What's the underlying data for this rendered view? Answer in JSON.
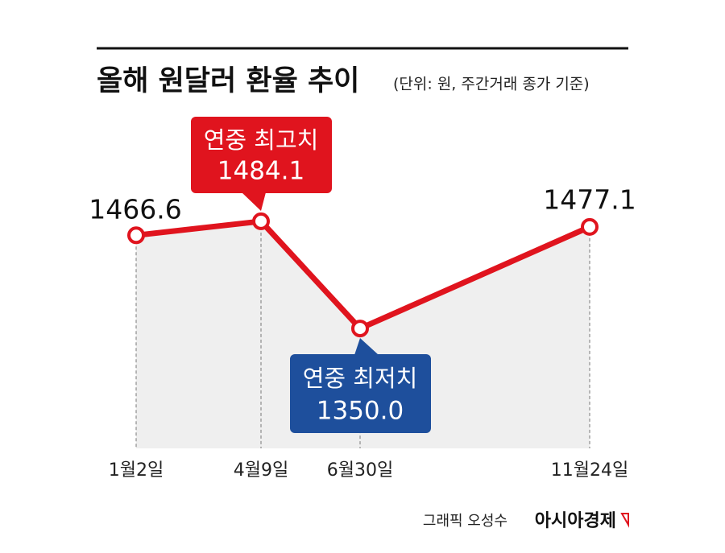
{
  "chart_data": {
    "type": "line",
    "title": "올해 원달러 환율 추이",
    "subtitle": "(단위: 원, 주간거래 종가 기준)",
    "categories": [
      "1월2일",
      "4월9일",
      "6월30일",
      "11월24일"
    ],
    "series": [
      {
        "color": "#e0141e",
        "values": [
          1466.6,
          1484.1,
          1350.0,
          1477.1
        ]
      }
    ],
    "value_labels": [
      "1466.6",
      "1484.1",
      "1350.0",
      "1477.1"
    ],
    "annotations": [
      "연중 최고치",
      "연중 최저치"
    ],
    "ylim": [
      1200,
      1620
    ],
    "source": "그래픽 오성수",
    "brand": "아시아경제"
  }
}
